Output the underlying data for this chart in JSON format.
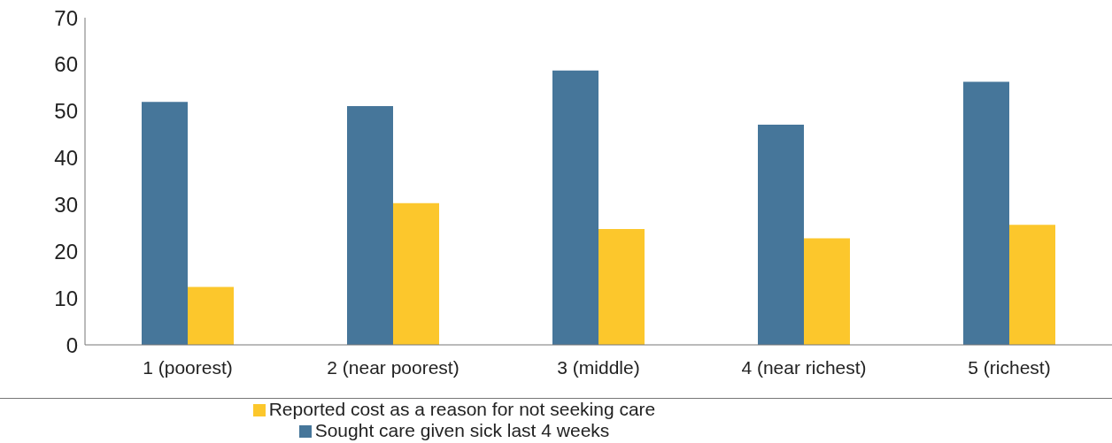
{
  "chart_data": {
    "type": "bar",
    "categories": [
      "1 (poorest)",
      "2 (near poorest)",
      "3 (middle)",
      "4 (near richest)",
      "5 (richest)"
    ],
    "series": [
      {
        "name": "Sought care given sick last 4 weeks",
        "color": "#46769a",
        "values": [
          52,
          51.1,
          58.7,
          47.1,
          56.3
        ]
      },
      {
        "name": "Reported cost as a reason for not seeking care",
        "color": "#fcc72c",
        "values": [
          12.4,
          30.3,
          24.8,
          22.8,
          25.7
        ]
      }
    ],
    "ylim": [
      0,
      70
    ],
    "yticks": [
      0,
      10,
      20,
      30,
      40,
      50,
      60,
      70
    ],
    "grid": false,
    "legend": "bottom"
  }
}
